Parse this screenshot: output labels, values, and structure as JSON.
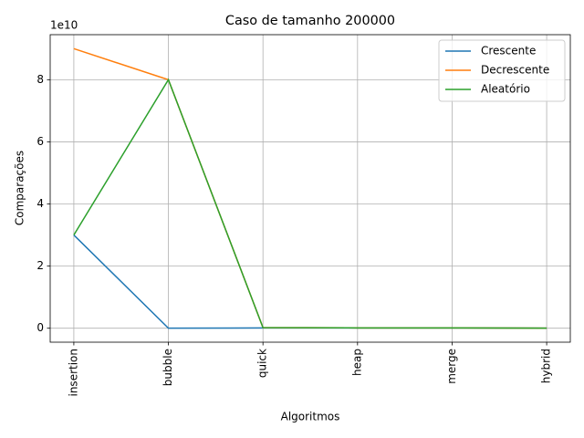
{
  "chart_data": {
    "type": "line",
    "title": "Caso  de tamanho 200000",
    "x_label": "Algoritmos",
    "y_label": "Comparações",
    "y_offset_label": "1e10",
    "categories": [
      "insertion",
      "bubble",
      "quick",
      "heap",
      "merge",
      "hybrid"
    ],
    "series": [
      {
        "name": "Crescente",
        "color": "#1f77b4",
        "values": [
          3.0,
          0.0,
          0.01,
          0.01,
          0.01,
          0.0
        ]
      },
      {
        "name": "Decrescente",
        "color": "#ff7f0e",
        "values": [
          9.0,
          8.0,
          0.02,
          0.01,
          0.01,
          0.0
        ]
      },
      {
        "name": "Aleatório",
        "color": "#2ca02c",
        "values": [
          3.0,
          8.0,
          0.02,
          0.01,
          0.01,
          0.0
        ]
      }
    ],
    "ylim": [
      -0.45,
      9.45
    ],
    "yticks": [
      0,
      2,
      4,
      6,
      8
    ],
    "grid": true,
    "legend": "upper right"
  }
}
